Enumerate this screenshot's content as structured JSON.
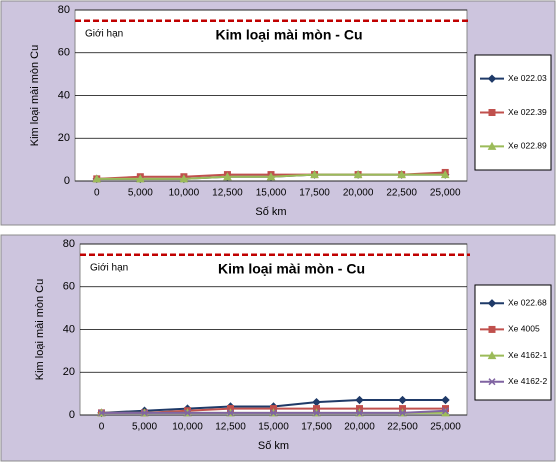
{
  "chart_data": [
    {
      "type": "line",
      "title": "Kim loại mài mòn - Cu",
      "y_label": "Kim loại mài mòn Cu",
      "x_label": "Số km",
      "annotation": "Giới hạn",
      "limit": 75,
      "limit_color": "#c00000",
      "categories": [
        "0",
        "5,000",
        "10,000",
        "12,500",
        "15,000",
        "17,500",
        "20,000",
        "22,500",
        "25,000"
      ],
      "ylim": [
        0,
        80
      ],
      "yticks": [
        0,
        20,
        40,
        60,
        80
      ],
      "grid": true,
      "legend": "right",
      "series": [
        {
          "name": "Xe 022.03",
          "color": "#1f3a68",
          "marker": "diamond",
          "values": [
            1,
            1,
            1,
            2,
            2,
            3,
            3,
            3,
            3
          ]
        },
        {
          "name": "Xe 022.39",
          "color": "#c0504d",
          "marker": "square",
          "values": [
            1,
            2,
            2,
            3,
            3,
            3,
            3,
            3,
            4
          ]
        },
        {
          "name": "Xe 022.89",
          "color": "#9bbb59",
          "marker": "triangle",
          "values": [
            1,
            1,
            1,
            2,
            2,
            3,
            3,
            3,
            3
          ]
        }
      ]
    },
    {
      "type": "line",
      "title": "Kim loại mài mòn - Cu",
      "y_label": "Kim loại mài mòn Cu",
      "x_label": "Số km",
      "annotation": "Giới hạn",
      "limit": 75,
      "limit_color": "#c00000",
      "categories": [
        "0",
        "5,000",
        "10,000",
        "12,500",
        "15,000",
        "17,500",
        "20,000",
        "22,500",
        "25,000"
      ],
      "ylim": [
        0,
        80
      ],
      "yticks": [
        0,
        20,
        40,
        60,
        80
      ],
      "grid": true,
      "legend": "right",
      "series": [
        {
          "name": "Xe 022.68",
          "color": "#1f3a68",
          "marker": "diamond",
          "values": [
            1,
            2,
            3,
            4,
            4,
            6,
            7,
            7,
            7
          ]
        },
        {
          "name": "Xe 4005",
          "color": "#c0504d",
          "marker": "square",
          "values": [
            1,
            1,
            2,
            3,
            3,
            3,
            3,
            3,
            3
          ]
        },
        {
          "name": "Xe 4162-1",
          "color": "#9bbb59",
          "marker": "triangle",
          "values": [
            1,
            1,
            1,
            1,
            1,
            1,
            1,
            1,
            1
          ]
        },
        {
          "name": "Xe 4162-2",
          "color": "#8064a2",
          "marker": "x",
          "values": [
            1,
            1,
            1,
            1,
            1,
            1,
            1,
            1,
            2
          ]
        }
      ]
    }
  ]
}
